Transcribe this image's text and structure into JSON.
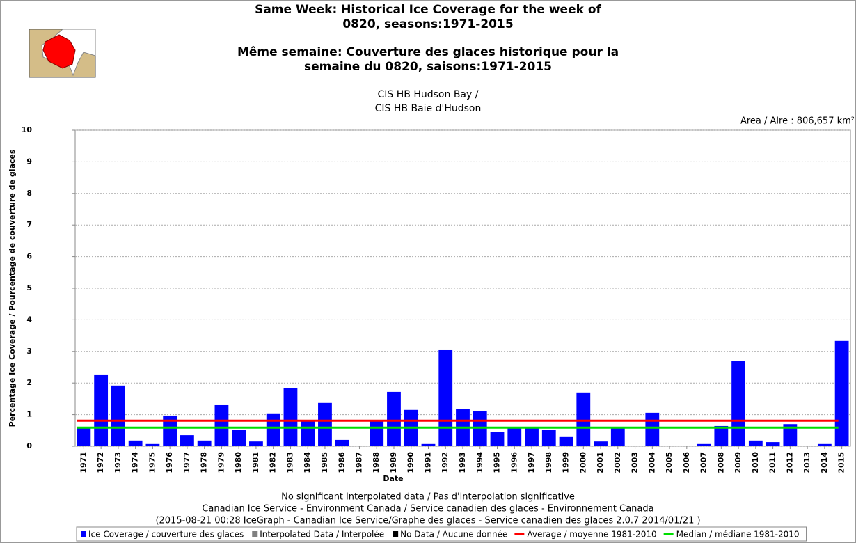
{
  "chart_data": {
    "type": "bar",
    "title_lines": [
      "Same Week: Historical Ice Coverage for the week of",
      "0820, seasons:1971-2015",
      "Même semaine: Couverture des glaces historique pour la",
      "semaine du 0820, saisons:1971-2015"
    ],
    "subtitle_lines": [
      "CIS HB Hudson Bay /",
      "CIS HB Baie d'Hudson"
    ],
    "area_note": "Area / Aire : 806,657 km²",
    "y_label": "Percentage Ice Coverage / Pourcentage de couverture de glaces",
    "x_label": "Date",
    "footer_lines": [
      "No significant interpolated data / Pas d'interpolation significative",
      "Canadian Ice Service - Environment Canada / Service canadien des glaces - Environnement Canada",
      "(2015-08-21 00:28 IceGraph - Canadian Ice Service/Graphe des glaces - Service canadien des glaces 2.0.7 2014/01/21 )"
    ],
    "categories": [
      "1971",
      "1972",
      "1973",
      "1974",
      "1975",
      "1976",
      "1977",
      "1978",
      "1979",
      "1980",
      "1981",
      "1982",
      "1983",
      "1984",
      "1985",
      "1986",
      "1987",
      "1988",
      "1989",
      "1990",
      "1991",
      "1992",
      "1993",
      "1994",
      "1995",
      "1996",
      "1997",
      "1998",
      "1999",
      "2000",
      "2001",
      "2002",
      "2003",
      "2004",
      "2005",
      "2006",
      "2007",
      "2008",
      "2009",
      "2010",
      "2011",
      "2012",
      "2013",
      "2014",
      "2015"
    ],
    "values": [
      0.57,
      2.27,
      1.92,
      0.18,
      0.07,
      0.97,
      0.35,
      0.18,
      1.3,
      0.51,
      0.15,
      1.04,
      1.83,
      0.79,
      1.37,
      0.2,
      0,
      0.8,
      1.72,
      1.15,
      0.07,
      3.04,
      1.17,
      1.12,
      0.46,
      0.57,
      0.57,
      0.51,
      0.29,
      1.7,
      0.15,
      0.57,
      0,
      1.06,
      0.02,
      0,
      0.07,
      0.64,
      2.69,
      0.18,
      0.13,
      0.7,
      0.02,
      0.07,
      3.33
    ],
    "color": "#0000ff",
    "reference_lines": [
      {
        "value": 0.81,
        "color": "#ff0000"
      },
      {
        "value": 0.59,
        "color": "#00dd00"
      }
    ],
    "legend": [
      {
        "label": "Ice Coverage / couverture des glaces",
        "color": "#0000ff",
        "style": "square"
      },
      {
        "label": "Interpolated Data / Interpolée",
        "color": "#808080",
        "style": "square"
      },
      {
        "label": "No Data / Aucune donnée",
        "color": "#000000",
        "style": "square"
      },
      {
        "label": "Average / moyenne 1981-2010",
        "color": "#ff0000",
        "style": "line"
      },
      {
        "label": "Median / médiane 1981-2010",
        "color": "#00dd00",
        "style": "line"
      }
    ],
    "ylim": [
      0,
      10
    ],
    "yticks": [
      0,
      1,
      2,
      3,
      4,
      5,
      6,
      7,
      8,
      9,
      10
    ],
    "grid": true
  }
}
